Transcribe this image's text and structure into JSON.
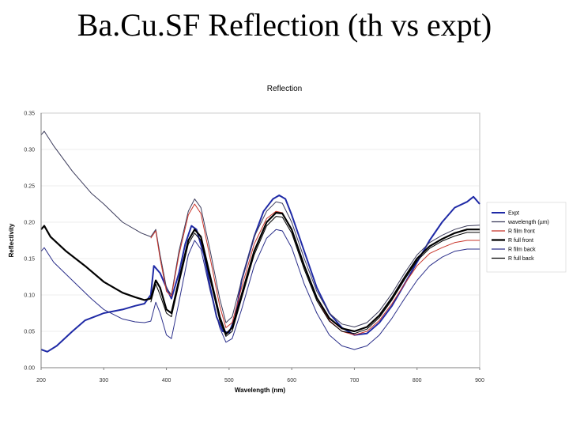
{
  "slide": {
    "title": "Ba.Cu.SF Reflection (th vs expt)"
  },
  "chart_data": {
    "type": "line",
    "title": "Reflection",
    "xlabel": "Wavelength  (nm)",
    "ylabel": "Reflectivity",
    "xlim": [
      200,
      900
    ],
    "ylim": [
      0,
      0.35
    ],
    "xticks": [
      "200",
      "300",
      "400",
      "500",
      "600",
      "700",
      "800",
      "900"
    ],
    "yticks": [
      "0.00",
      "0.05",
      "0.10",
      "0.15",
      "0.20",
      "0.25",
      "0.30",
      "0.35"
    ],
    "legend_position": "right",
    "series": [
      {
        "name": "Expt",
        "color": "#1f2aa6",
        "width": 2,
        "points": [
          [
            200,
            0.025
          ],
          [
            210,
            0.022
          ],
          [
            225,
            0.03
          ],
          [
            250,
            0.05
          ],
          [
            270,
            0.065
          ],
          [
            300,
            0.075
          ],
          [
            330,
            0.08
          ],
          [
            350,
            0.085
          ],
          [
            365,
            0.088
          ],
          [
            375,
            0.1
          ],
          [
            380,
            0.14
          ],
          [
            390,
            0.13
          ],
          [
            400,
            0.11
          ],
          [
            408,
            0.095
          ],
          [
            420,
            0.13
          ],
          [
            430,
            0.17
          ],
          [
            440,
            0.195
          ],
          [
            448,
            0.19
          ],
          [
            460,
            0.155
          ],
          [
            470,
            0.11
          ],
          [
            480,
            0.07
          ],
          [
            490,
            0.05
          ],
          [
            500,
            0.048
          ],
          [
            510,
            0.07
          ],
          [
            520,
            0.12
          ],
          [
            540,
            0.18
          ],
          [
            555,
            0.215
          ],
          [
            570,
            0.232
          ],
          [
            580,
            0.237
          ],
          [
            590,
            0.232
          ],
          [
            600,
            0.21
          ],
          [
            620,
            0.16
          ],
          [
            640,
            0.11
          ],
          [
            660,
            0.075
          ],
          [
            680,
            0.055
          ],
          [
            700,
            0.045
          ],
          [
            720,
            0.047
          ],
          [
            740,
            0.062
          ],
          [
            760,
            0.085
          ],
          [
            780,
            0.115
          ],
          [
            800,
            0.145
          ],
          [
            820,
            0.175
          ],
          [
            840,
            0.2
          ],
          [
            860,
            0.22
          ],
          [
            880,
            0.228
          ],
          [
            890,
            0.235
          ],
          [
            900,
            0.225
          ]
        ]
      },
      {
        "name": "wavelength (µm)",
        "color": "#3a3a5a",
        "width": 1,
        "points": [
          [
            200,
            0.32
          ],
          [
            205,
            0.325
          ],
          [
            220,
            0.305
          ],
          [
            250,
            0.27
          ],
          [
            280,
            0.24
          ],
          [
            300,
            0.225
          ],
          [
            330,
            0.2
          ],
          [
            360,
            0.185
          ],
          [
            375,
            0.18
          ],
          [
            383,
            0.19
          ],
          [
            390,
            0.155
          ],
          [
            400,
            0.11
          ],
          [
            408,
            0.1
          ],
          [
            420,
            0.16
          ],
          [
            435,
            0.215
          ],
          [
            445,
            0.232
          ],
          [
            455,
            0.22
          ],
          [
            470,
            0.16
          ],
          [
            485,
            0.095
          ],
          [
            495,
            0.062
          ],
          [
            505,
            0.07
          ],
          [
            520,
            0.12
          ],
          [
            540,
            0.18
          ],
          [
            560,
            0.215
          ],
          [
            575,
            0.228
          ],
          [
            585,
            0.226
          ],
          [
            600,
            0.2
          ],
          [
            620,
            0.15
          ],
          [
            640,
            0.105
          ],
          [
            660,
            0.075
          ],
          [
            680,
            0.06
          ],
          [
            700,
            0.056
          ],
          [
            720,
            0.062
          ],
          [
            740,
            0.078
          ],
          [
            760,
            0.102
          ],
          [
            780,
            0.13
          ],
          [
            800,
            0.155
          ],
          [
            820,
            0.172
          ],
          [
            840,
            0.182
          ],
          [
            860,
            0.19
          ],
          [
            880,
            0.195
          ],
          [
            900,
            0.196
          ]
        ]
      },
      {
        "name": "R film front",
        "color": "#c8342a",
        "width": 1,
        "points": [
          [
            375,
            0.178
          ],
          [
            383,
            0.188
          ],
          [
            390,
            0.15
          ],
          [
            400,
            0.105
          ],
          [
            408,
            0.098
          ],
          [
            420,
            0.155
          ],
          [
            435,
            0.21
          ],
          [
            445,
            0.225
          ],
          [
            455,
            0.212
          ],
          [
            470,
            0.15
          ],
          [
            485,
            0.085
          ],
          [
            495,
            0.055
          ],
          [
            505,
            0.062
          ],
          [
            520,
            0.11
          ],
          [
            540,
            0.17
          ],
          [
            560,
            0.205
          ],
          [
            575,
            0.215
          ],
          [
            585,
            0.213
          ],
          [
            600,
            0.19
          ],
          [
            620,
            0.14
          ],
          [
            640,
            0.095
          ],
          [
            660,
            0.065
          ],
          [
            680,
            0.05
          ],
          [
            700,
            0.045
          ],
          [
            720,
            0.05
          ],
          [
            740,
            0.065
          ],
          [
            760,
            0.088
          ],
          [
            780,
            0.115
          ],
          [
            800,
            0.14
          ],
          [
            820,
            0.157
          ],
          [
            840,
            0.165
          ],
          [
            860,
            0.172
          ],
          [
            880,
            0.175
          ],
          [
            900,
            0.175
          ]
        ]
      },
      {
        "name": "R full front",
        "color": "#000000",
        "width": 2.2,
        "points": [
          [
            200,
            0.19
          ],
          [
            205,
            0.195
          ],
          [
            215,
            0.18
          ],
          [
            240,
            0.16
          ],
          [
            270,
            0.14
          ],
          [
            300,
            0.118
          ],
          [
            330,
            0.103
          ],
          [
            350,
            0.097
          ],
          [
            365,
            0.093
          ],
          [
            375,
            0.095
          ],
          [
            383,
            0.12
          ],
          [
            390,
            0.11
          ],
          [
            400,
            0.08
          ],
          [
            408,
            0.075
          ],
          [
            420,
            0.12
          ],
          [
            435,
            0.175
          ],
          [
            445,
            0.19
          ],
          [
            455,
            0.18
          ],
          [
            470,
            0.125
          ],
          [
            485,
            0.07
          ],
          [
            495,
            0.046
          ],
          [
            505,
            0.055
          ],
          [
            520,
            0.1
          ],
          [
            540,
            0.16
          ],
          [
            560,
            0.2
          ],
          [
            575,
            0.213
          ],
          [
            585,
            0.212
          ],
          [
            600,
            0.19
          ],
          [
            620,
            0.14
          ],
          [
            640,
            0.096
          ],
          [
            660,
            0.068
          ],
          [
            680,
            0.054
          ],
          [
            700,
            0.05
          ],
          [
            720,
            0.056
          ],
          [
            740,
            0.072
          ],
          [
            760,
            0.096
          ],
          [
            780,
            0.124
          ],
          [
            800,
            0.15
          ],
          [
            820,
            0.167
          ],
          [
            840,
            0.177
          ],
          [
            860,
            0.185
          ],
          [
            880,
            0.19
          ],
          [
            900,
            0.19
          ]
        ]
      },
      {
        "name": "R film back",
        "color": "#2b2f8a",
        "width": 1,
        "points": [
          [
            200,
            0.16
          ],
          [
            205,
            0.165
          ],
          [
            220,
            0.145
          ],
          [
            250,
            0.12
          ],
          [
            280,
            0.095
          ],
          [
            300,
            0.08
          ],
          [
            330,
            0.067
          ],
          [
            350,
            0.063
          ],
          [
            365,
            0.062
          ],
          [
            375,
            0.064
          ],
          [
            383,
            0.09
          ],
          [
            390,
            0.075
          ],
          [
            400,
            0.045
          ],
          [
            408,
            0.04
          ],
          [
            420,
            0.09
          ],
          [
            435,
            0.155
          ],
          [
            445,
            0.175
          ],
          [
            455,
            0.163
          ],
          [
            470,
            0.105
          ],
          [
            485,
            0.055
          ],
          [
            495,
            0.035
          ],
          [
            505,
            0.04
          ],
          [
            520,
            0.08
          ],
          [
            540,
            0.14
          ],
          [
            560,
            0.178
          ],
          [
            575,
            0.19
          ],
          [
            585,
            0.188
          ],
          [
            600,
            0.165
          ],
          [
            620,
            0.115
          ],
          [
            640,
            0.075
          ],
          [
            660,
            0.045
          ],
          [
            680,
            0.03
          ],
          [
            700,
            0.025
          ],
          [
            720,
            0.03
          ],
          [
            740,
            0.045
          ],
          [
            760,
            0.068
          ],
          [
            780,
            0.095
          ],
          [
            800,
            0.12
          ],
          [
            820,
            0.14
          ],
          [
            840,
            0.152
          ],
          [
            860,
            0.16
          ],
          [
            880,
            0.163
          ],
          [
            900,
            0.163
          ]
        ]
      },
      {
        "name": "R full back",
        "color": "#000000",
        "width": 1,
        "points": [
          [
            375,
            0.09
          ],
          [
            383,
            0.115
          ],
          [
            390,
            0.1
          ],
          [
            400,
            0.075
          ],
          [
            408,
            0.07
          ],
          [
            420,
            0.115
          ],
          [
            435,
            0.17
          ],
          [
            445,
            0.185
          ],
          [
            455,
            0.175
          ],
          [
            470,
            0.12
          ],
          [
            485,
            0.065
          ],
          [
            495,
            0.043
          ],
          [
            505,
            0.05
          ],
          [
            520,
            0.095
          ],
          [
            540,
            0.155
          ],
          [
            560,
            0.195
          ],
          [
            575,
            0.208
          ],
          [
            585,
            0.207
          ],
          [
            600,
            0.185
          ],
          [
            620,
            0.135
          ],
          [
            640,
            0.092
          ],
          [
            660,
            0.064
          ],
          [
            680,
            0.05
          ],
          [
            700,
            0.047
          ],
          [
            720,
            0.053
          ],
          [
            740,
            0.069
          ],
          [
            760,
            0.093
          ],
          [
            780,
            0.121
          ],
          [
            800,
            0.147
          ],
          [
            820,
            0.164
          ],
          [
            840,
            0.174
          ],
          [
            860,
            0.181
          ],
          [
            880,
            0.186
          ],
          [
            900,
            0.186
          ]
        ]
      }
    ]
  }
}
